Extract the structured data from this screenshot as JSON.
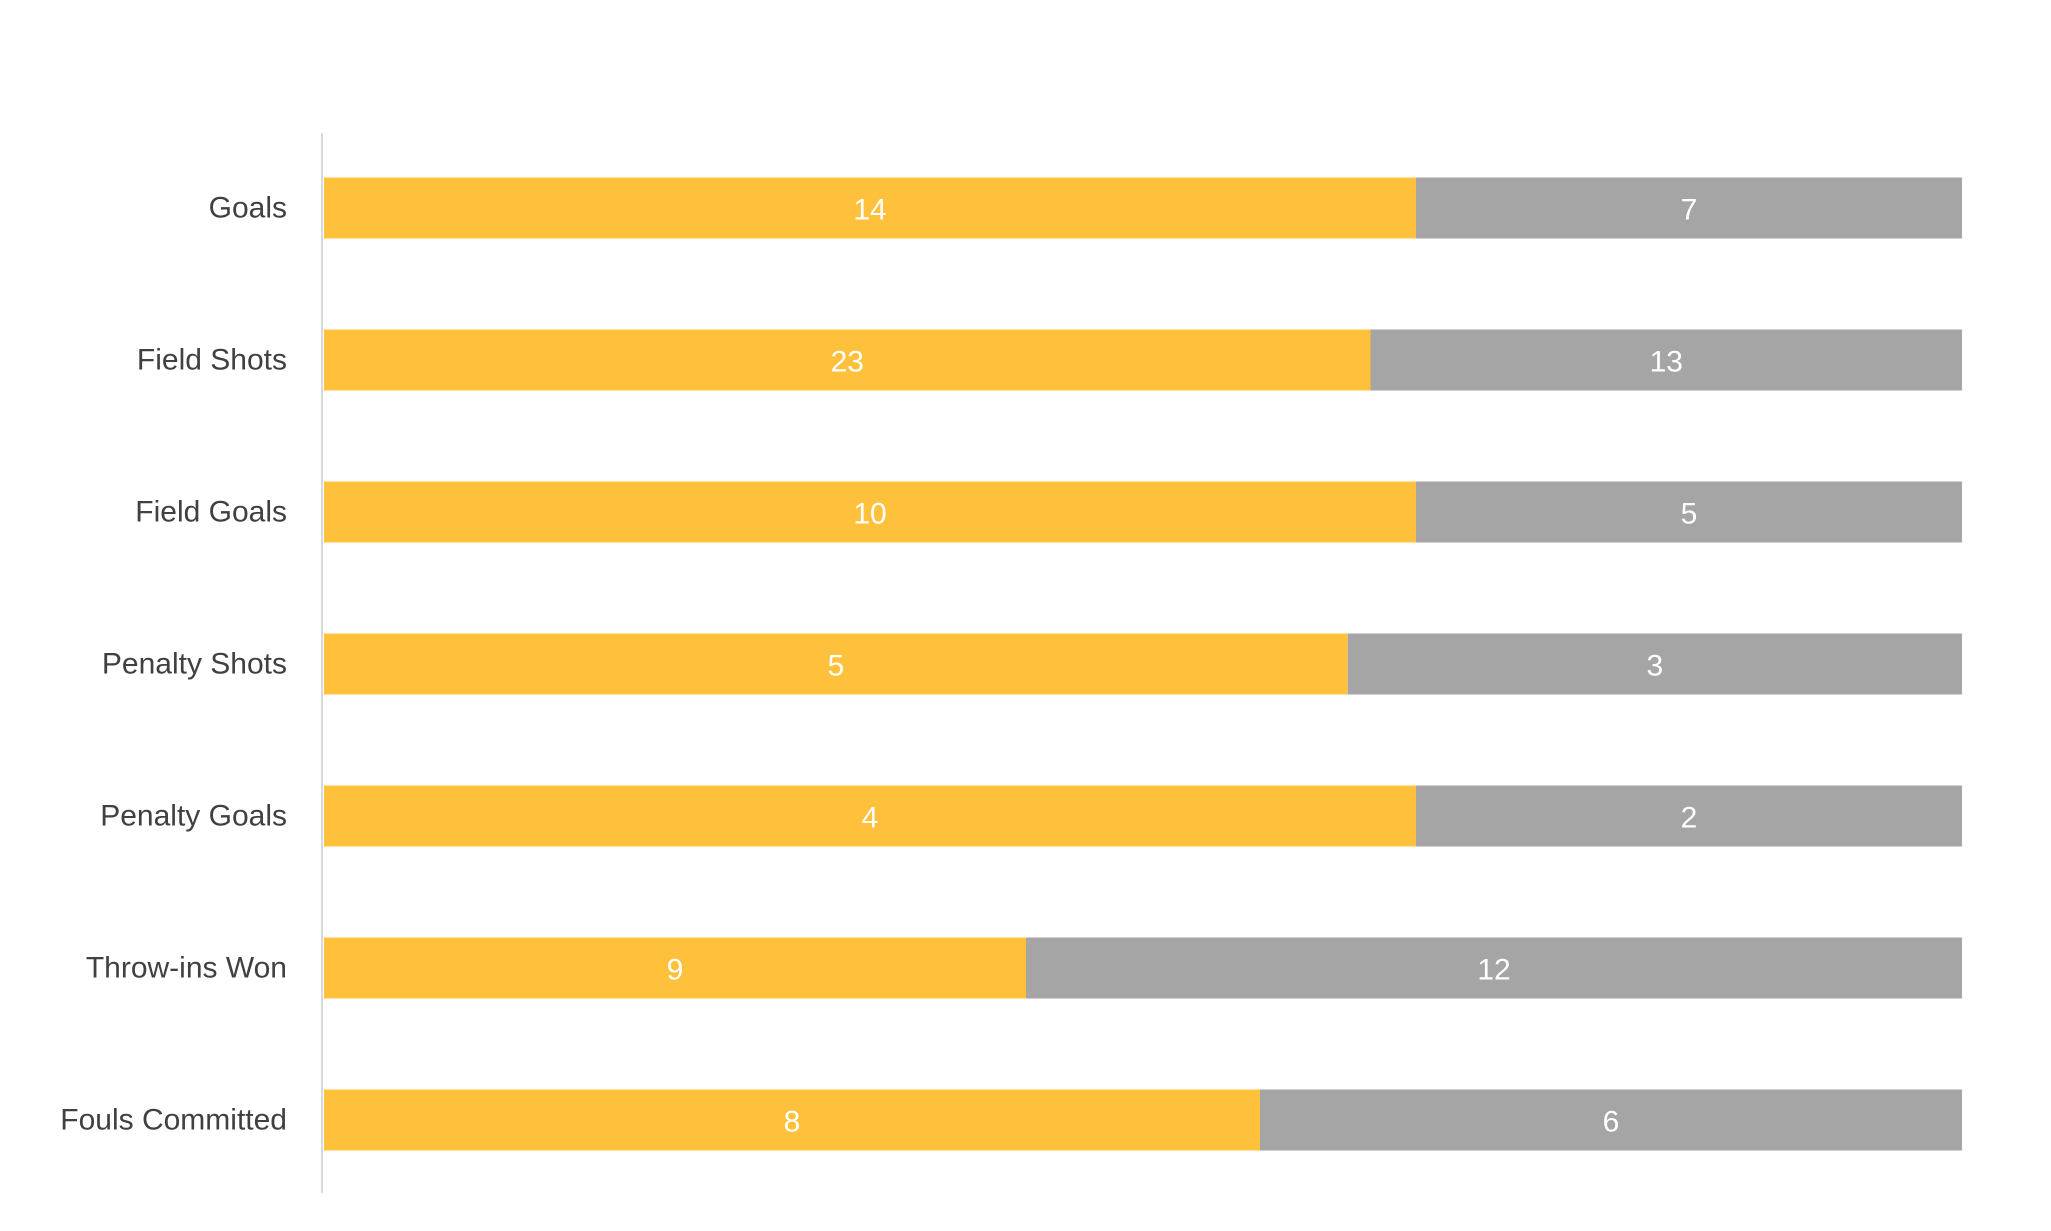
{
  "chart_data": {
    "type": "bar",
    "orientation": "horizontal",
    "stacking": "percent",
    "title": "",
    "xlabel": "",
    "ylabel": "",
    "xlim": [
      0,
      100
    ],
    "grid": false,
    "legend": "none",
    "categories": [
      "Goals",
      "Field Shots",
      "Field Goals",
      "Penalty Shots",
      "Penalty Goals",
      "Throw-ins Won",
      "Fouls Committed"
    ],
    "series": [
      {
        "color": "#FFC13B",
        "values": [
          14,
          23,
          10,
          5,
          4,
          9,
          8
        ]
      },
      {
        "color": "#A5A5A5",
        "values": [
          7,
          13,
          5,
          3,
          2,
          12,
          6
        ]
      }
    ],
    "axis_color": "#D9D9D9",
    "category_label_color": "#404040",
    "value_label_color": "#FFFFFF"
  }
}
